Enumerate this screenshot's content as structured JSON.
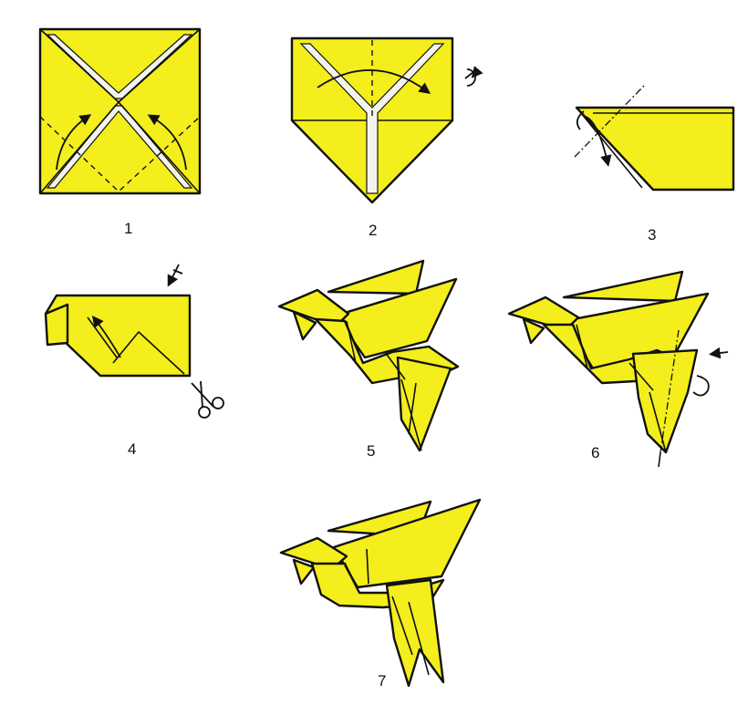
{
  "colors": {
    "paper": "#f3ee1c",
    "ink": "#111111"
  },
  "steps": [
    {
      "number": "1",
      "content": "square-with-corners-folded-to-center-icon"
    },
    {
      "number": "2",
      "content": "pentagon-fold-and-turn-over-icon"
    },
    {
      "number": "3",
      "content": "folded-strip-with-diagonal-fold-icon"
    },
    {
      "number": "4",
      "content": "strip-with-cut-scissors-icon"
    },
    {
      "number": "5",
      "content": "bird-shape-icon"
    },
    {
      "number": "6",
      "content": "bird-with-tail-fold-icon"
    },
    {
      "number": "7",
      "content": "finished-origami-bird-icon"
    }
  ]
}
